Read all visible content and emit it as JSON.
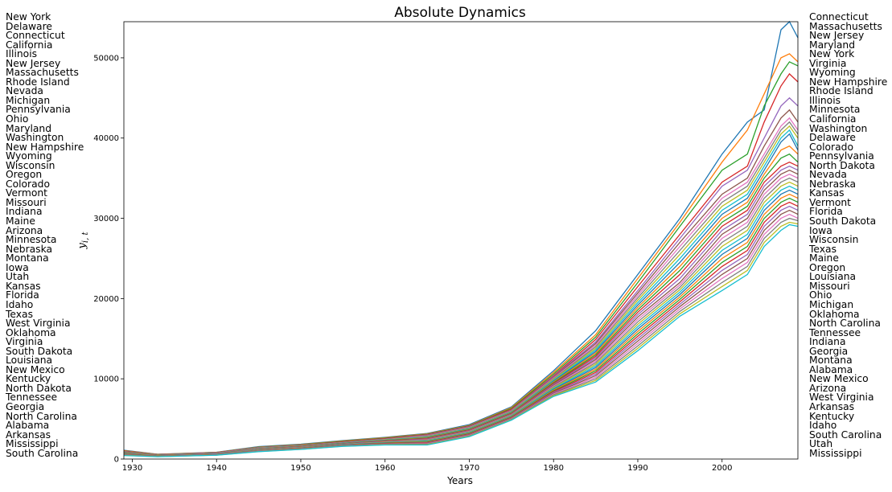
{
  "chart_data": {
    "type": "line",
    "title": "Absolute Dynamics",
    "xlabel": "Years",
    "ylabel": "y",
    "ylabel_subscript": "i, t",
    "xlim": [
      1929,
      2009
    ],
    "ylim": [
      0,
      54500
    ],
    "x_ticks": [
      1930,
      1940,
      1950,
      1960,
      1970,
      1980,
      1990,
      2000
    ],
    "y_ticks": [
      0,
      10000,
      20000,
      30000,
      40000,
      50000
    ],
    "grid": false,
    "left_labels": [
      "New York",
      "Delaware",
      "Connecticut",
      "California",
      "Illinois",
      "New Jersey",
      "Massachusetts",
      "Rhode Island",
      "Nevada",
      "Michigan",
      "Pennsylvania",
      "Ohio",
      "Maryland",
      "Washington",
      "New Hampshire",
      "Wyoming",
      "Wisconsin",
      "Oregon",
      "Colorado",
      "Vermont",
      "Missouri",
      "Indiana",
      "Maine",
      "Arizona",
      "Minnesota",
      "Nebraska",
      "Montana",
      "Iowa",
      "Utah",
      "Kansas",
      "Florida",
      "Idaho",
      "Texas",
      "West Virginia",
      "Oklahoma",
      "Virginia",
      "South Dakota",
      "Louisiana",
      "New Mexico",
      "Kentucky",
      "North Dakota",
      "Tennessee",
      "Georgia",
      "North Carolina",
      "Alabama",
      "Arkansas",
      "Mississippi",
      "South Carolina"
    ],
    "right_labels": [
      "Connecticut",
      "Massachusetts",
      "New Jersey",
      "Maryland",
      "New York",
      "Virginia",
      "Wyoming",
      "New Hampshire",
      "Rhode Island",
      "Illinois",
      "Minnesota",
      "California",
      "Washington",
      "Delaware",
      "Colorado",
      "Pennsylvania",
      "North Dakota",
      "Nevada",
      "Nebraska",
      "Kansas",
      "Vermont",
      "Florida",
      "South Dakota",
      "Iowa",
      "Wisconsin",
      "Texas",
      "Maine",
      "Oregon",
      "Louisiana",
      "Missouri",
      "Ohio",
      "Michigan",
      "Oklahoma",
      "North Carolina",
      "Tennessee",
      "Indiana",
      "Georgia",
      "Montana",
      "Alabama",
      "New Mexico",
      "Arizona",
      "West Virginia",
      "Arkansas",
      "Kentucky",
      "Idaho",
      "South Carolina",
      "Utah",
      "Mississippi"
    ],
    "colors": [
      "#1f77b4",
      "#ff7f0e",
      "#2ca02c",
      "#d62728",
      "#9467bd",
      "#8c564b",
      "#e377c2",
      "#7f7f7f",
      "#bcbd22",
      "#17becf"
    ],
    "x": [
      1929,
      1933,
      1940,
      1945,
      1950,
      1955,
      1960,
      1965,
      1970,
      1975,
      1980,
      1985,
      1990,
      1995,
      2000,
      2003,
      2005,
      2007,
      2008,
      2009
    ],
    "series": [
      {
        "values": [
          1100,
          600,
          850,
          1550,
          1850,
          2300,
          2700,
          3200,
          4300,
          6500,
          11000,
          16000,
          23000,
          30000,
          38000,
          42000,
          43500,
          53500,
          54500,
          52500
        ]
      },
      {
        "values": [
          1050,
          580,
          820,
          1500,
          1800,
          2250,
          2650,
          3150,
          4200,
          6400,
          10800,
          15500,
          22500,
          29500,
          37000,
          41000,
          45500,
          50000,
          50500,
          49500
        ]
      },
      {
        "values": [
          1000,
          560,
          800,
          1470,
          1760,
          2200,
          2600,
          3100,
          4150,
          6300,
          10600,
          15200,
          22000,
          29000,
          36000,
          38000,
          44000,
          48000,
          49500,
          49000
        ]
      },
      {
        "values": [
          980,
          550,
          780,
          1440,
          1720,
          2150,
          2550,
          3050,
          4100,
          6200,
          10400,
          14900,
          21500,
          28000,
          34500,
          36500,
          42000,
          46500,
          48000,
          47000
        ]
      },
      {
        "values": [
          950,
          540,
          760,
          1420,
          1700,
          2100,
          2500,
          3000,
          4050,
          6100,
          10300,
          14600,
          21000,
          27500,
          34000,
          36000,
          40000,
          44000,
          45000,
          44000
        ]
      },
      {
        "values": [
          920,
          530,
          740,
          1400,
          1680,
          2080,
          2470,
          2950,
          4000,
          6050,
          10200,
          14400,
          20700,
          27000,
          33000,
          35000,
          39000,
          42500,
          43500,
          42000
        ]
      },
      {
        "values": [
          900,
          520,
          720,
          1380,
          1660,
          2050,
          2440,
          2900,
          3950,
          6000,
          10100,
          14200,
          20400,
          26500,
          32500,
          34500,
          38000,
          41500,
          42500,
          41000
        ]
      },
      {
        "values": [
          880,
          510,
          700,
          1360,
          1640,
          2020,
          2410,
          2850,
          3900,
          5950,
          10000,
          14000,
          20100,
          26000,
          32000,
          34000,
          37500,
          41000,
          42000,
          40500
        ]
      },
      {
        "values": [
          860,
          500,
          690,
          1340,
          1620,
          2000,
          2380,
          2800,
          3850,
          5900,
          9900,
          13800,
          19800,
          25500,
          31500,
          33500,
          37000,
          40500,
          41500,
          40000
        ]
      },
      {
        "values": [
          840,
          490,
          680,
          1320,
          1600,
          1980,
          2350,
          2750,
          3800,
          5850,
          9800,
          13600,
          19500,
          25000,
          31000,
          33000,
          36500,
          40000,
          41000,
          39000
        ]
      },
      {
        "values": [
          820,
          480,
          670,
          1300,
          1580,
          1960,
          2320,
          2700,
          3750,
          5800,
          9700,
          13400,
          19200,
          24500,
          30500,
          32500,
          36000,
          39500,
          40500,
          38500
        ]
      },
      {
        "values": [
          800,
          470,
          660,
          1280,
          1560,
          1940,
          2290,
          2650,
          3700,
          5750,
          9600,
          13200,
          18900,
          24000,
          30000,
          32000,
          35500,
          38500,
          39000,
          38000
        ]
      },
      {
        "values": [
          780,
          460,
          650,
          1260,
          1540,
          1920,
          2260,
          2600,
          3650,
          5700,
          9500,
          13000,
          18600,
          23500,
          29500,
          31500,
          35000,
          37500,
          38000,
          37000
        ]
      },
      {
        "values": [
          760,
          450,
          640,
          1240,
          1520,
          1900,
          2230,
          2550,
          3600,
          5650,
          9400,
          12800,
          18300,
          23000,
          29000,
          31000,
          34500,
          36500,
          37000,
          36500
        ]
      },
      {
        "values": [
          740,
          440,
          630,
          1220,
          1500,
          1880,
          2200,
          2500,
          3550,
          5600,
          9300,
          12600,
          18000,
          22500,
          28500,
          30500,
          34000,
          36000,
          36500,
          36000
        ]
      },
      {
        "values": [
          720,
          430,
          620,
          1200,
          1480,
          1860,
          2170,
          2450,
          3500,
          5550,
          9200,
          12400,
          17700,
          22000,
          28000,
          30000,
          33500,
          35500,
          36000,
          35500
        ]
      },
      {
        "values": [
          700,
          420,
          610,
          1180,
          1460,
          1840,
          2140,
          2400,
          3450,
          5500,
          9100,
          12200,
          17400,
          21700,
          27500,
          29500,
          33000,
          35000,
          35500,
          35000
        ]
      },
      {
        "values": [
          680,
          410,
          600,
          1160,
          1440,
          1820,
          2110,
          2350,
          3400,
          5450,
          9000,
          12000,
          17100,
          21400,
          27000,
          29000,
          32500,
          34500,
          35000,
          34500
        ]
      },
      {
        "values": [
          660,
          400,
          590,
          1140,
          1420,
          1800,
          2080,
          2300,
          3350,
          5400,
          8900,
          11800,
          16800,
          21100,
          26500,
          28500,
          32000,
          34000,
          34500,
          34000
        ]
      },
      {
        "values": [
          640,
          390,
          580,
          1120,
          1400,
          1780,
          2050,
          2250,
          3300,
          5350,
          8800,
          11600,
          16500,
          20800,
          26000,
          28000,
          31500,
          33500,
          34000,
          33500
        ]
      },
      {
        "values": [
          620,
          380,
          570,
          1100,
          1380,
          1760,
          2020,
          2200,
          3250,
          5300,
          8700,
          11400,
          16200,
          20500,
          25500,
          27500,
          31000,
          33000,
          33500,
          33000
        ]
      },
      {
        "values": [
          600,
          370,
          560,
          1080,
          1360,
          1740,
          1990,
          2150,
          3200,
          5250,
          8600,
          11200,
          15900,
          20200,
          25000,
          27000,
          30500,
          32500,
          33000,
          32500
        ]
      },
      {
        "values": [
          580,
          360,
          550,
          1060,
          1340,
          1720,
          1960,
          2100,
          3150,
          5200,
          8500,
          11000,
          15600,
          19900,
          24500,
          26500,
          30000,
          32000,
          32500,
          32000
        ]
      },
      {
        "values": [
          560,
          350,
          540,
          1040,
          1320,
          1700,
          1930,
          2050,
          3100,
          5150,
          8400,
          10800,
          15300,
          19600,
          24000,
          26000,
          29500,
          31500,
          32000,
          31500
        ]
      },
      {
        "values": [
          540,
          340,
          530,
          1020,
          1300,
          1680,
          1900,
          2000,
          3050,
          5100,
          8300,
          10600,
          15000,
          19300,
          23500,
          25500,
          29000,
          31000,
          31500,
          31000
        ]
      },
      {
        "values": [
          520,
          330,
          520,
          1000,
          1280,
          1660,
          1870,
          1950,
          3000,
          5050,
          8200,
          10400,
          14700,
          19000,
          23000,
          25000,
          28500,
          30500,
          31000,
          30500
        ]
      },
      {
        "values": [
          500,
          320,
          510,
          980,
          1260,
          1640,
          1840,
          1900,
          2950,
          5000,
          8100,
          10200,
          14400,
          18700,
          22500,
          24500,
          28000,
          30000,
          30500,
          30000
        ]
      },
      {
        "values": [
          480,
          310,
          500,
          960,
          1240,
          1620,
          1810,
          1850,
          2900,
          4950,
          8000,
          10000,
          14100,
          18400,
          22000,
          24000,
          27500,
          29500,
          30000,
          29700
        ]
      },
      {
        "values": [
          460,
          300,
          490,
          940,
          1220,
          1600,
          1780,
          1800,
          2850,
          4900,
          7900,
          9800,
          13800,
          18100,
          21500,
          23500,
          27000,
          29000,
          29500,
          29300
        ]
      },
      {
        "values": [
          440,
          290,
          480,
          920,
          1200,
          1580,
          1750,
          1750,
          2800,
          4850,
          7800,
          9600,
          13500,
          17800,
          21000,
          23000,
          26500,
          28500,
          29200,
          29000
        ]
      }
    ]
  }
}
